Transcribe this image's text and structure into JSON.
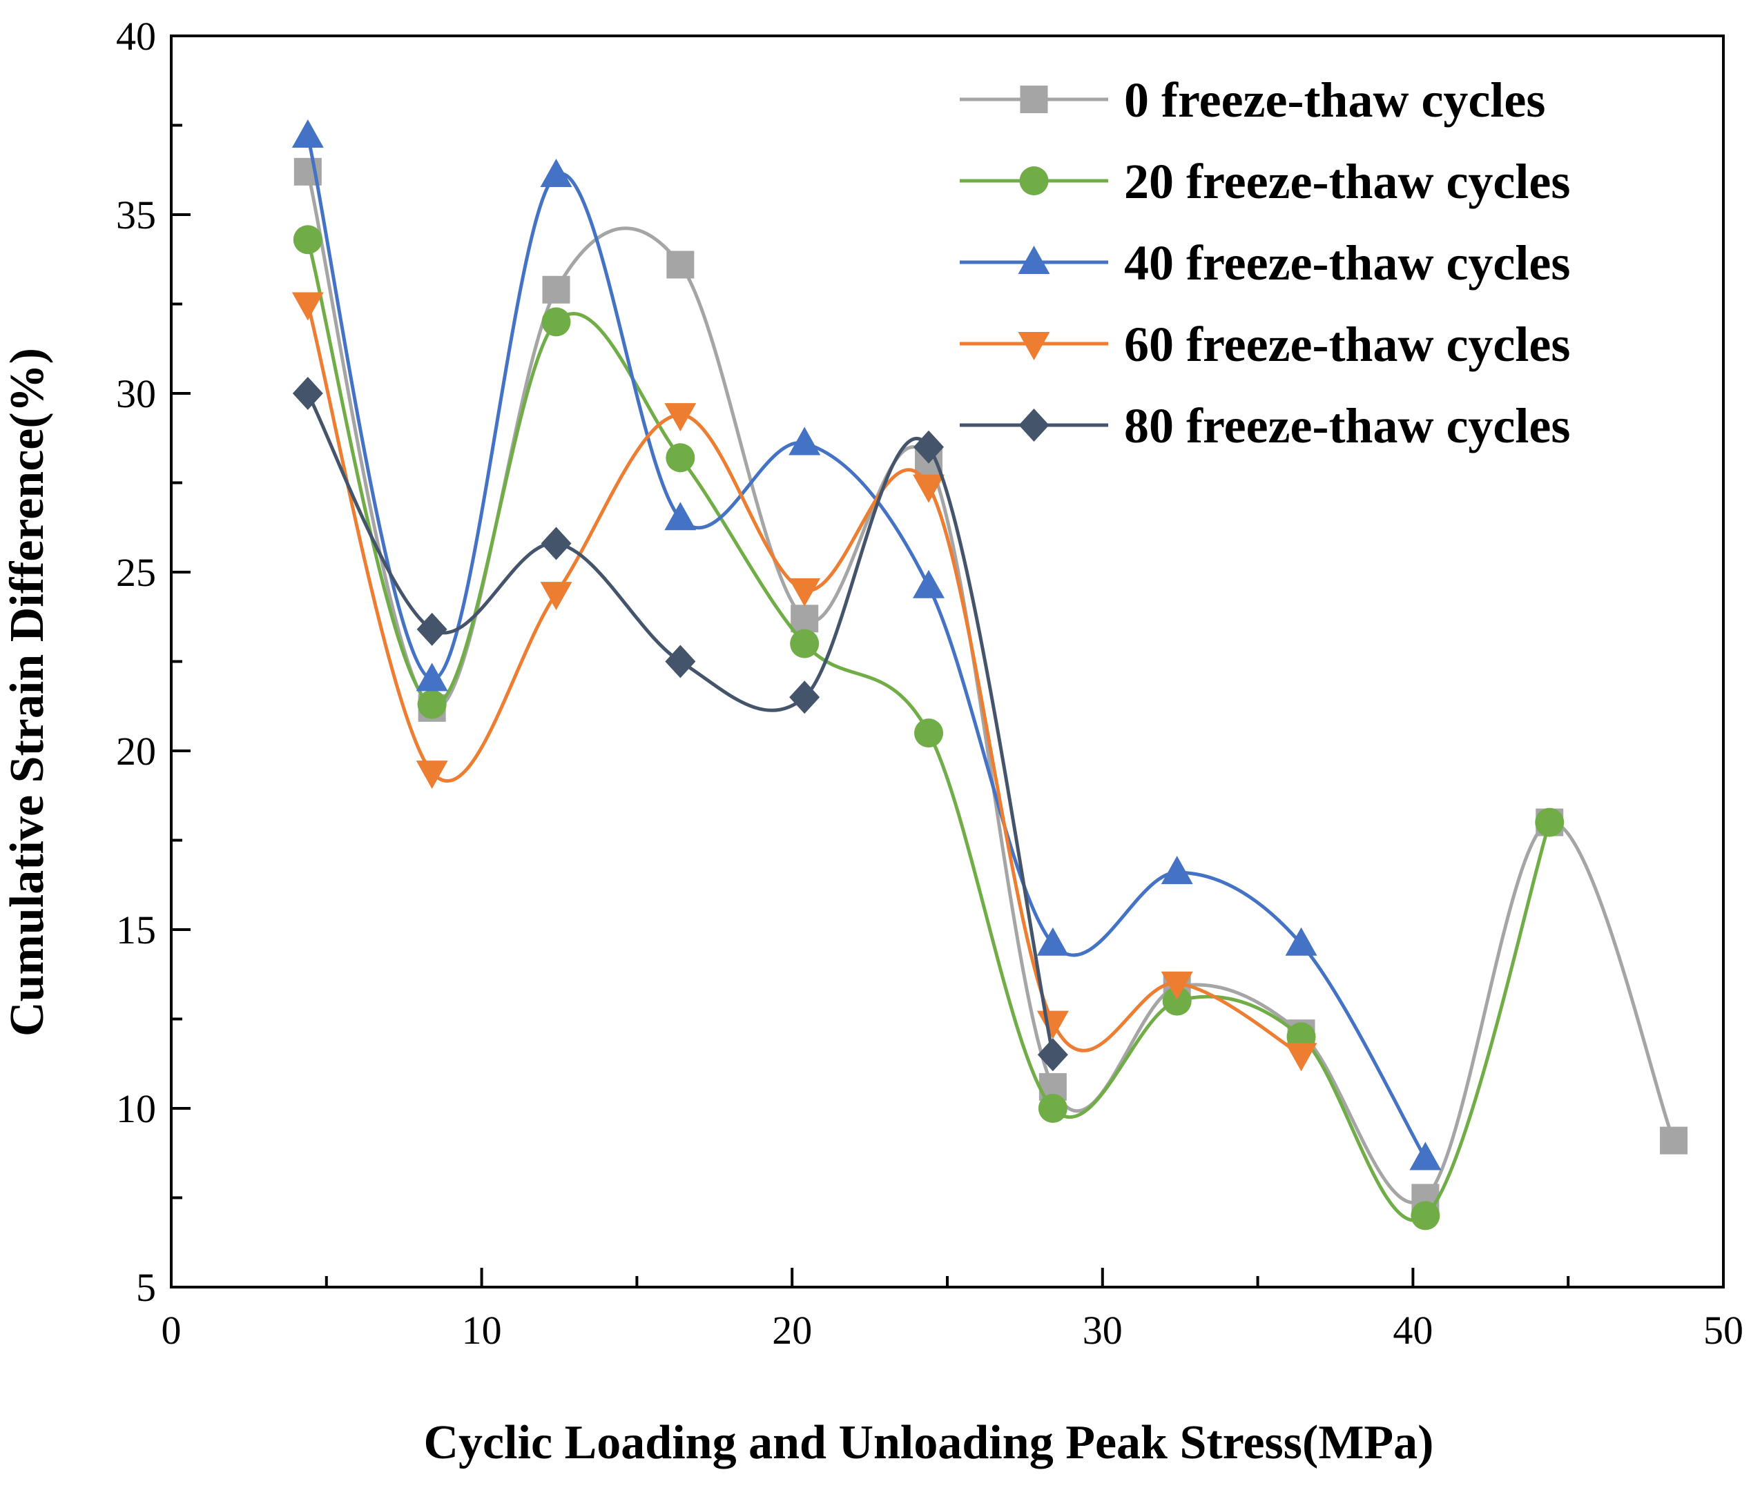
{
  "chart_data": {
    "type": "line",
    "title": "",
    "xlabel": "Cyclic Loading and Unloading Peak Stress(MPa)",
    "ylabel": "Cumulative Strain Difference(%)",
    "xlim": [
      0,
      50
    ],
    "ylim": [
      5,
      40
    ],
    "xticks": [
      0,
      10,
      20,
      30,
      40,
      50
    ],
    "yticks": [
      5,
      10,
      15,
      20,
      25,
      30,
      35,
      40
    ],
    "grid": false,
    "legend_position": "top-right",
    "series": [
      {
        "name": "0 freeze-thaw cycles",
        "color": "#a5a5a5",
        "marker": "square",
        "x": [
          4.4,
          8.4,
          12.4,
          16.4,
          20.4,
          24.4,
          28.4,
          32.4,
          36.4,
          40.4,
          44.4,
          48.4
        ],
        "y": [
          36.2,
          21.2,
          32.9,
          33.6,
          23.7,
          28.1,
          10.6,
          13.4,
          12.1,
          7.5,
          18.0,
          9.1
        ]
      },
      {
        "name": "20 freeze-thaw cycles",
        "color": "#70ad47",
        "marker": "circle",
        "x": [
          4.4,
          8.4,
          12.4,
          16.4,
          20.4,
          24.4,
          28.4,
          32.4,
          36.4,
          40.4,
          44.4
        ],
        "y": [
          34.3,
          21.3,
          32.0,
          28.2,
          23.0,
          20.5,
          10.0,
          13.0,
          12.0,
          7.0,
          18.0
        ]
      },
      {
        "name": "40 freeze-thaw cycles",
        "color": "#4472c4",
        "marker": "triangle-up",
        "x": [
          4.4,
          8.4,
          12.4,
          16.4,
          20.4,
          24.4,
          28.4,
          32.4,
          36.4,
          40.4
        ],
        "y": [
          37.2,
          22.0,
          36.1,
          26.5,
          28.6,
          24.6,
          14.6,
          16.6,
          14.6,
          8.6
        ]
      },
      {
        "name": "60 freeze-thaw cycles",
        "color": "#ed7d31",
        "marker": "triangle-down",
        "x": [
          4.4,
          8.4,
          12.4,
          16.4,
          20.4,
          24.4,
          28.4,
          32.4,
          36.4
        ],
        "y": [
          32.5,
          19.4,
          24.4,
          29.4,
          24.5,
          27.4,
          12.4,
          13.5,
          11.5
        ]
      },
      {
        "name": "80 freeze-thaw cycles",
        "color": "#44546a",
        "marker": "diamond",
        "x": [
          4.4,
          8.4,
          12.4,
          16.4,
          20.4,
          24.4,
          28.4
        ],
        "y": [
          30.0,
          23.4,
          25.8,
          22.5,
          21.5,
          28.5,
          11.5
        ]
      }
    ]
  }
}
